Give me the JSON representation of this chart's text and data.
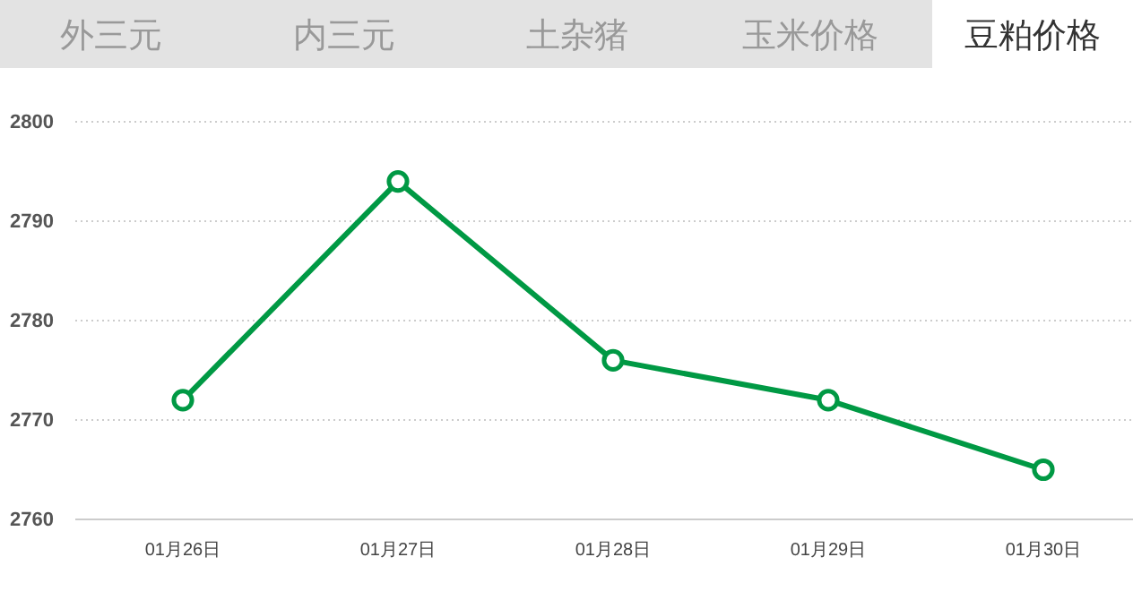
{
  "chart_data": {
    "type": "line",
    "title": "豆粕价格",
    "annotations": [
      "外三元",
      "内三元",
      "土杂猪",
      "玉米价格"
    ],
    "categories": [
      "01月26日",
      "01月27日",
      "01月28日",
      "01月29日",
      "01月30日"
    ],
    "series": [
      {
        "color": "#009944",
        "values": [
          2772,
          2794,
          2776,
          2772,
          2765
        ]
      }
    ],
    "ylim": [
      2760,
      2800
    ],
    "yticks": [
      2760,
      2770,
      2780,
      2790,
      2800
    ],
    "grid": "y",
    "marker": "circle",
    "line_style": "solid"
  }
}
